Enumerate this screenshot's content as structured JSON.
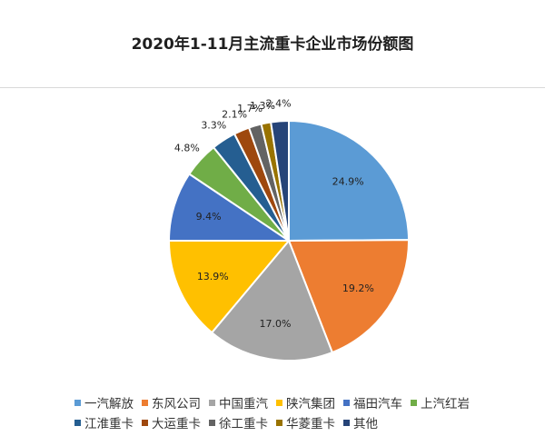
{
  "chart_data": {
    "type": "pie",
    "title": "2020年1-11月主流重卡企业市场份额图",
    "series": [
      {
        "name": "一汽解放",
        "value": 24.9,
        "label": "24.9%",
        "color": "#5b9bd5"
      },
      {
        "name": "东风公司",
        "value": 19.2,
        "label": "19.2%",
        "color": "#ed7d31"
      },
      {
        "name": "中国重汽",
        "value": 17.0,
        "label": "17.0%",
        "color": "#a5a5a5"
      },
      {
        "name": "陕汽集团",
        "value": 13.9,
        "label": "13.9%",
        "color": "#ffc000"
      },
      {
        "name": "福田汽车",
        "value": 9.4,
        "label": "9.4%",
        "color": "#4472c4"
      },
      {
        "name": "上汽红岩",
        "value": 4.8,
        "label": "4.8%",
        "color": "#70ad47"
      },
      {
        "name": "江淮重卡",
        "value": 3.3,
        "label": "3.3%",
        "color": "#255e91"
      },
      {
        "name": "大运重卡",
        "value": 2.1,
        "label": "2.1%",
        "color": "#9e480e"
      },
      {
        "name": "徐工重卡",
        "value": 1.7,
        "label": "1.7%",
        "color": "#636363"
      },
      {
        "name": "华菱重卡",
        "value": 1.3,
        "label": "1.3%",
        "color": "#997300"
      },
      {
        "name": "其他",
        "value": 2.4,
        "label": "2.4%",
        "color": "#264478"
      }
    ],
    "legend": "bottom"
  }
}
